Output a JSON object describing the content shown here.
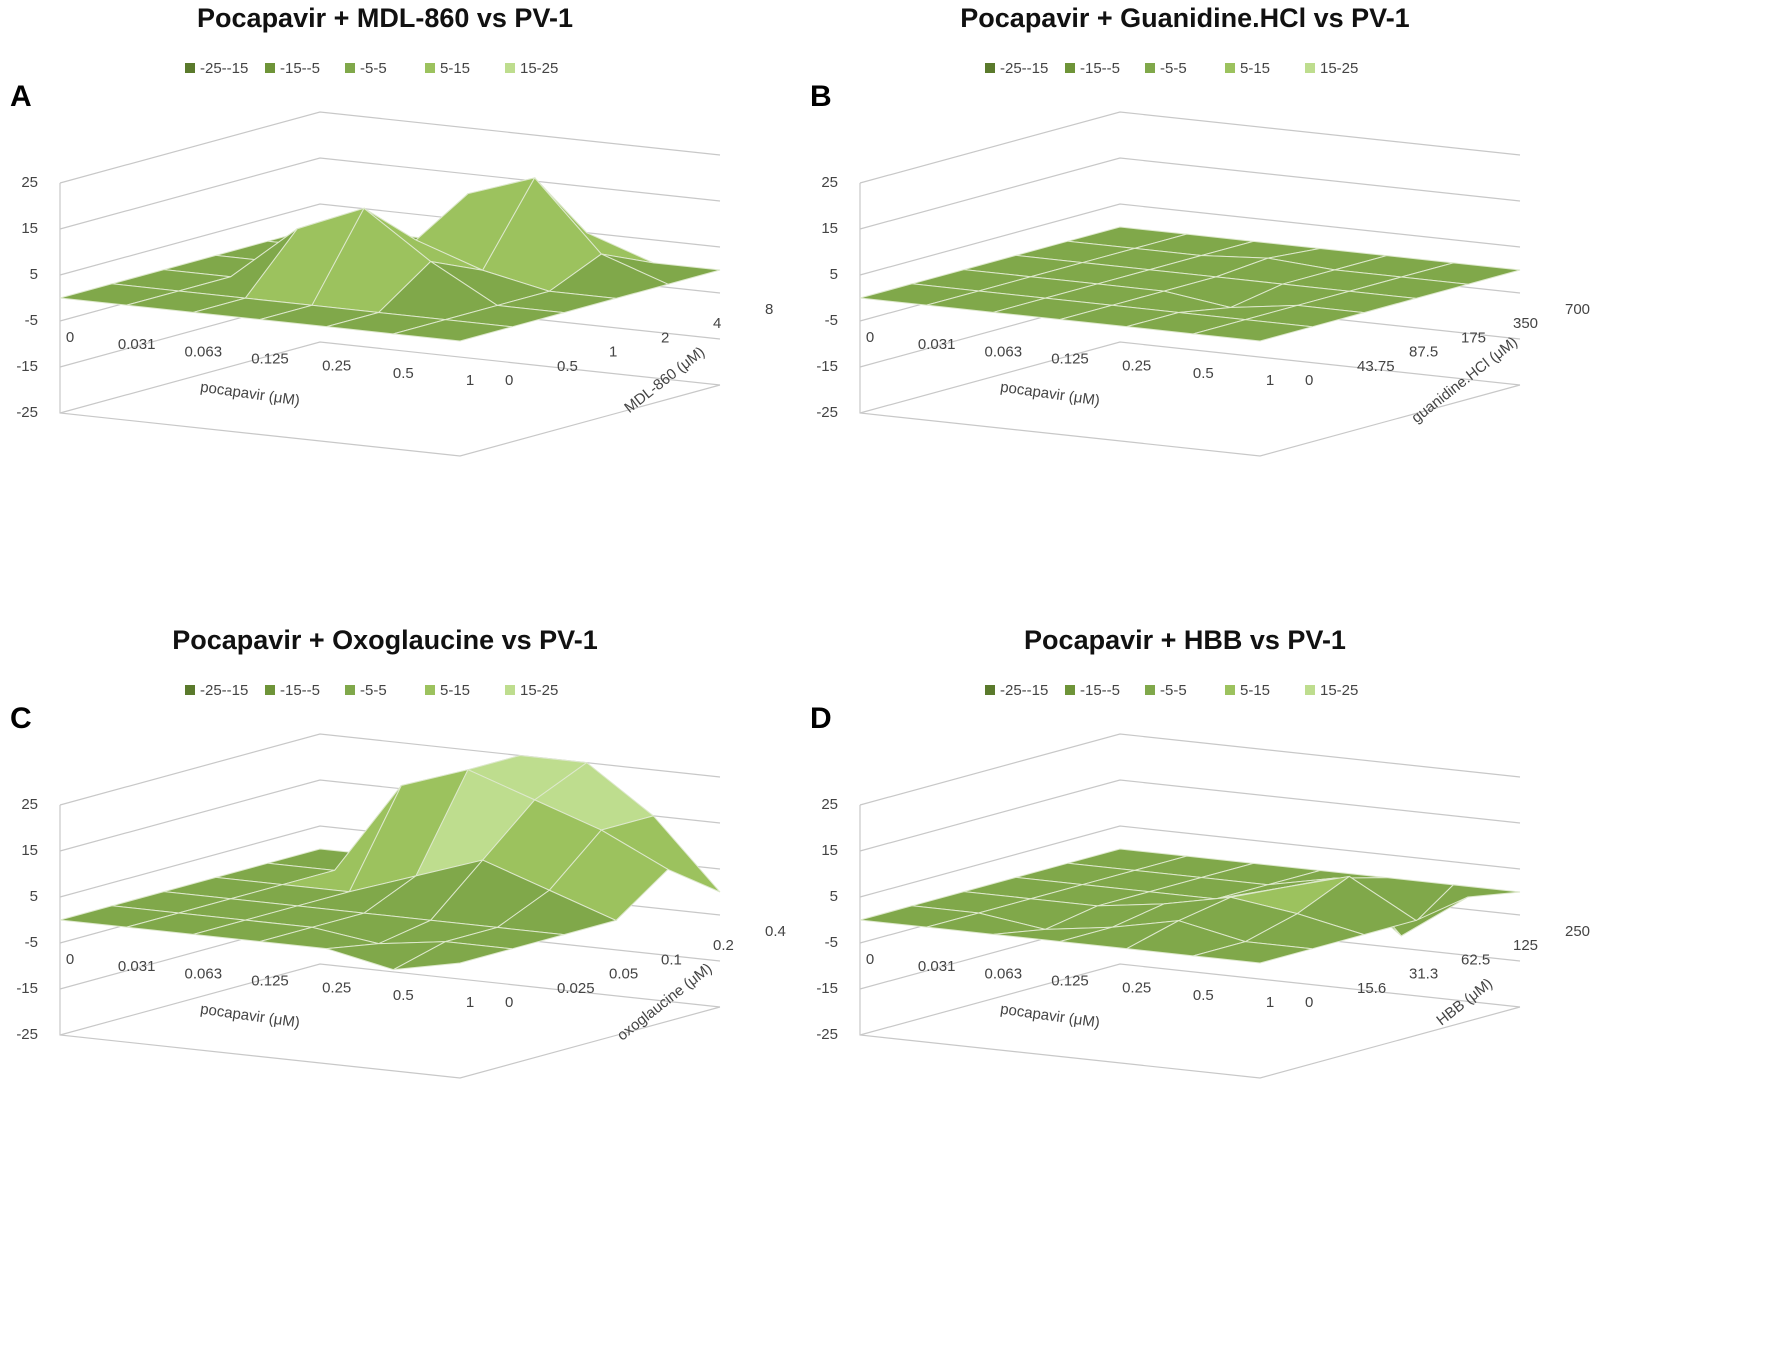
{
  "chart_data": [
    {
      "type": "surface",
      "panel": "A",
      "title": "Pocapavir + MDL-860 vs PV-1",
      "legend": [
        {
          "name": "-25--15",
          "color": "#5a7a2c"
        },
        {
          "name": "-15--5",
          "color": "#6e9438"
        },
        {
          "name": "-5-5",
          "color": "#80a84a"
        },
        {
          "name": "5-15",
          "color": "#9cc25e"
        },
        {
          "name": "15-25",
          "color": "#bedd8e"
        }
      ],
      "x_label": "pocapavir (μM)",
      "depth_label": "MDL-860 (μM)",
      "categories": [
        "0",
        "0.031",
        "0.063",
        "0.125",
        "0.25",
        "0.5",
        "1"
      ],
      "depth_categories": [
        "0",
        "0.5",
        "1",
        "2",
        "4",
        "8"
      ],
      "values": [
        [
          0,
          0,
          0,
          0,
          0,
          0,
          0
        ],
        [
          0,
          0,
          0,
          0,
          0,
          0,
          0
        ],
        [
          0,
          0,
          12,
          18,
          8,
          0,
          0
        ],
        [
          0,
          0,
          5,
          8,
          3,
          0,
          0
        ],
        [
          0,
          0,
          0,
          15,
          20,
          5,
          0
        ],
        [
          0,
          0,
          0,
          5,
          5,
          0,
          0
        ]
      ],
      "zlim": [
        -25,
        25
      ],
      "zticks": [
        -25,
        -15,
        -5,
        5,
        15,
        25
      ]
    },
    {
      "type": "surface",
      "panel": "B",
      "title": "Pocapavir + Guanidine.HCl vs PV-1",
      "legend": [
        {
          "name": "-25--15",
          "color": "#5a7a2c"
        },
        {
          "name": "-15--5",
          "color": "#6e9438"
        },
        {
          "name": "-5-5",
          "color": "#80a84a"
        },
        {
          "name": "5-15",
          "color": "#9cc25e"
        },
        {
          "name": "15-25",
          "color": "#bedd8e"
        }
      ],
      "x_label": "pocapavir (μM)",
      "depth_label": "guanidine.HCl (μM)",
      "categories": [
        "0",
        "0.031",
        "0.063",
        "0.125",
        "0.25",
        "0.5",
        "1"
      ],
      "depth_categories": [
        "0",
        "43.75",
        "87.5",
        "175",
        "350",
        "700"
      ],
      "values": [
        [
          0,
          0,
          0,
          0,
          0,
          0,
          0
        ],
        [
          0,
          0,
          0,
          0,
          0,
          0,
          0
        ],
        [
          0,
          0,
          0,
          0,
          -2,
          0,
          0
        ],
        [
          0,
          0,
          0,
          0,
          0,
          0,
          0
        ],
        [
          0,
          0,
          0,
          1,
          0,
          0,
          0
        ],
        [
          0,
          0,
          0,
          0,
          0,
          0,
          0
        ]
      ],
      "zlim": [
        -25,
        25
      ],
      "zticks": [
        -25,
        -15,
        -5,
        5,
        15,
        25
      ]
    },
    {
      "type": "surface",
      "panel": "C",
      "title": "Pocapavir + Oxoglaucine vs PV-1",
      "legend": [
        {
          "name": "-25--15",
          "color": "#5a7a2c"
        },
        {
          "name": "-15--5",
          "color": "#6e9438"
        },
        {
          "name": "-5-5",
          "color": "#80a84a"
        },
        {
          "name": "5-15",
          "color": "#9cc25e"
        },
        {
          "name": "15-25",
          "color": "#bedd8e"
        }
      ],
      "x_label": "pocapavir (μM)",
      "depth_label": "oxoglaucine (μM)",
      "categories": [
        "0",
        "0.031",
        "0.063",
        "0.125",
        "0.25",
        "0.5",
        "1"
      ],
      "depth_categories": [
        "0",
        "0.025",
        "0.05",
        "0.1",
        "0.2",
        "0.4"
      ],
      "values": [
        [
          0,
          0,
          0,
          0,
          0,
          -3,
          0
        ],
        [
          0,
          0,
          0,
          0,
          -2,
          0,
          0
        ],
        [
          0,
          0,
          0,
          0,
          0,
          0,
          0
        ],
        [
          0,
          0,
          0,
          5,
          10,
          5,
          0
        ],
        [
          0,
          0,
          20,
          25,
          20,
          15,
          8
        ],
        [
          0,
          0,
          10,
          25,
          25,
          15,
          0
        ]
      ],
      "zlim": [
        -25,
        25
      ],
      "zticks": [
        -25,
        -15,
        -5,
        5,
        15,
        25
      ]
    },
    {
      "type": "surface",
      "panel": "D",
      "title": "Pocapavir + HBB vs PV-1",
      "legend": [
        {
          "name": "-25--15",
          "color": "#5a7a2c"
        },
        {
          "name": "-15--5",
          "color": "#6e9438"
        },
        {
          "name": "-5-5",
          "color": "#80a84a"
        },
        {
          "name": "5-15",
          "color": "#9cc25e"
        },
        {
          "name": "15-25",
          "color": "#bedd8e"
        }
      ],
      "x_label": "pocapavir (μM)",
      "depth_label": "HBB (μM)",
      "categories": [
        "0",
        "0.031",
        "0.063",
        "0.125",
        "0.25",
        "0.5",
        "1"
      ],
      "depth_categories": [
        "0",
        "15.6",
        "31.3",
        "62.5",
        "125",
        "250"
      ],
      "values": [
        [
          0,
          0,
          0,
          0,
          0,
          0,
          0
        ],
        [
          0,
          0,
          -2,
          0,
          3,
          0,
          0
        ],
        [
          0,
          0,
          0,
          2,
          5,
          3,
          0
        ],
        [
          0,
          0,
          0,
          0,
          4,
          8,
          0
        ],
        [
          0,
          0,
          0,
          0,
          3,
          -8,
          2
        ],
        [
          0,
          0,
          0,
          0,
          0,
          0,
          0
        ]
      ],
      "zlim": [
        -25,
        25
      ],
      "zticks": [
        -25,
        -15,
        -5,
        5,
        15,
        25
      ]
    }
  ]
}
